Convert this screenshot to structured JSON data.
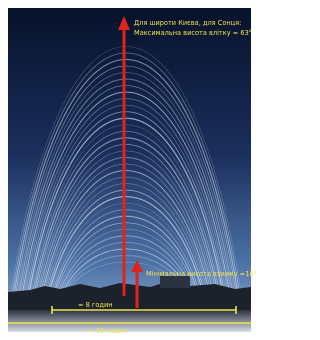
{
  "annotations": {
    "title_line1": "Для широти Києва, для Сонця:",
    "title_line2": "Максимальна висота влітку ≈ 63°",
    "min_height": "Мінімальна висота взимку ≈16°",
    "short_day": "≈ 8 годин",
    "long_day": "≈ 16 годин"
  }
}
